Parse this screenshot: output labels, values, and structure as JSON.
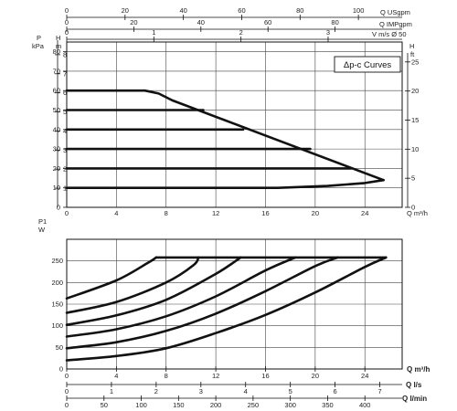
{
  "chart_data": [
    {
      "type": "line",
      "panel": "head",
      "title": "Δp-c Curves",
      "x_label": "Q m³/h",
      "x_range": [
        0,
        27
      ],
      "x_ticks": [
        0,
        4,
        8,
        12,
        16,
        20,
        24
      ],
      "y_left_unit_top": "P",
      "y_left_unit": "kPa",
      "y_left_range": [
        0,
        85
      ],
      "y_left_ticks": [
        0,
        10,
        20,
        30,
        40,
        50,
        60,
        70,
        80
      ],
      "y_mid_label": "H",
      "y_mid_unit": "m",
      "y_mid_ticks": [
        1,
        2,
        3,
        4,
        5,
        6,
        7,
        8
      ],
      "y_right_label": "H",
      "y_right_unit": "ft",
      "y_right_ticks": [
        0,
        5,
        10,
        15,
        20,
        25
      ],
      "top_axes": [
        {
          "label": "Q USgpm",
          "range": [
            0,
            115
          ],
          "ticks": [
            0,
            20,
            40,
            60,
            80,
            100
          ]
        },
        {
          "label": "Q IMPgpm",
          "range": [
            0,
            100
          ],
          "ticks": [
            0,
            20,
            40,
            60,
            80
          ]
        },
        {
          "label": "V m/s Ø 50",
          "range": [
            0,
            3.85
          ],
          "ticks": [
            0,
            1,
            2,
            3
          ]
        }
      ],
      "grid": true,
      "series": [
        {
          "points": [
            [
              0,
              10
            ],
            [
              17,
              10
            ],
            [
              21,
              11
            ],
            [
              24,
              12.5
            ],
            [
              25.5,
              14
            ]
          ]
        },
        {
          "points": [
            [
              0,
              20
            ],
            [
              22.9,
              20
            ]
          ]
        },
        {
          "points": [
            [
              0,
              30
            ],
            [
              19.6,
              30
            ]
          ]
        },
        {
          "points": [
            [
              0,
              40
            ],
            [
              14.2,
              40
            ]
          ]
        },
        {
          "points": [
            [
              0,
              50
            ],
            [
              11,
              50
            ]
          ]
        },
        {
          "points": [
            [
              0,
              60
            ],
            [
              6.3,
              60
            ],
            [
              7.4,
              58.5
            ],
            [
              8.5,
              55
            ],
            [
              25.5,
              14
            ]
          ]
        }
      ]
    },
    {
      "type": "line",
      "panel": "power",
      "y_label": "P1",
      "y_unit": "W",
      "y_range": [
        0,
        300
      ],
      "y_ticks": [
        0,
        50,
        100,
        150,
        200,
        250
      ],
      "x_range": [
        0,
        27
      ],
      "bottom_axes": [
        {
          "label": "Q m³/h",
          "range": [
            0,
            27
          ],
          "ticks": [
            0,
            4,
            8,
            12,
            16,
            20,
            24
          ]
        },
        {
          "label": "Q l/s",
          "range": [
            0,
            7.5
          ],
          "ticks": [
            0,
            1,
            2,
            3,
            4,
            5,
            6,
            7
          ]
        },
        {
          "label": "Q l/min",
          "range": [
            0,
            450
          ],
          "ticks": [
            0,
            50,
            100,
            150,
            200,
            250,
            300,
            350,
            400
          ]
        }
      ],
      "grid": true,
      "series": [
        {
          "points": [
            [
              0,
              20
            ],
            [
              4,
              30
            ],
            [
              8,
              48
            ],
            [
              12,
              83
            ],
            [
              16,
              125
            ],
            [
              20,
              177
            ],
            [
              24,
              236
            ],
            [
              25.7,
              258
            ]
          ]
        },
        {
          "points": [
            [
              0,
              48
            ],
            [
              4,
              62
            ],
            [
              8,
              88
            ],
            [
              12,
              128
            ],
            [
              16,
              180
            ],
            [
              20,
              238
            ],
            [
              21.8,
              258
            ]
          ]
        },
        {
          "points": [
            [
              0,
              75
            ],
            [
              4,
              92
            ],
            [
              8,
              122
            ],
            [
              12,
              168
            ],
            [
              16,
              228
            ],
            [
              18.4,
              258
            ]
          ]
        },
        {
          "points": [
            [
              0,
              102
            ],
            [
              4,
              124
            ],
            [
              8,
              160
            ],
            [
              12,
              220
            ],
            [
              14,
              258
            ]
          ]
        },
        {
          "points": [
            [
              0,
              130
            ],
            [
              4,
              155
            ],
            [
              8,
              200
            ],
            [
              10.2,
              240
            ],
            [
              10.6,
              258
            ]
          ]
        },
        {
          "points": [
            [
              0,
              163
            ],
            [
              4,
              205
            ],
            [
              6.5,
              245
            ],
            [
              7.2,
              258
            ]
          ]
        },
        {
          "points": [
            [
              7.2,
              258
            ],
            [
              25.7,
              258
            ]
          ]
        }
      ]
    }
  ]
}
